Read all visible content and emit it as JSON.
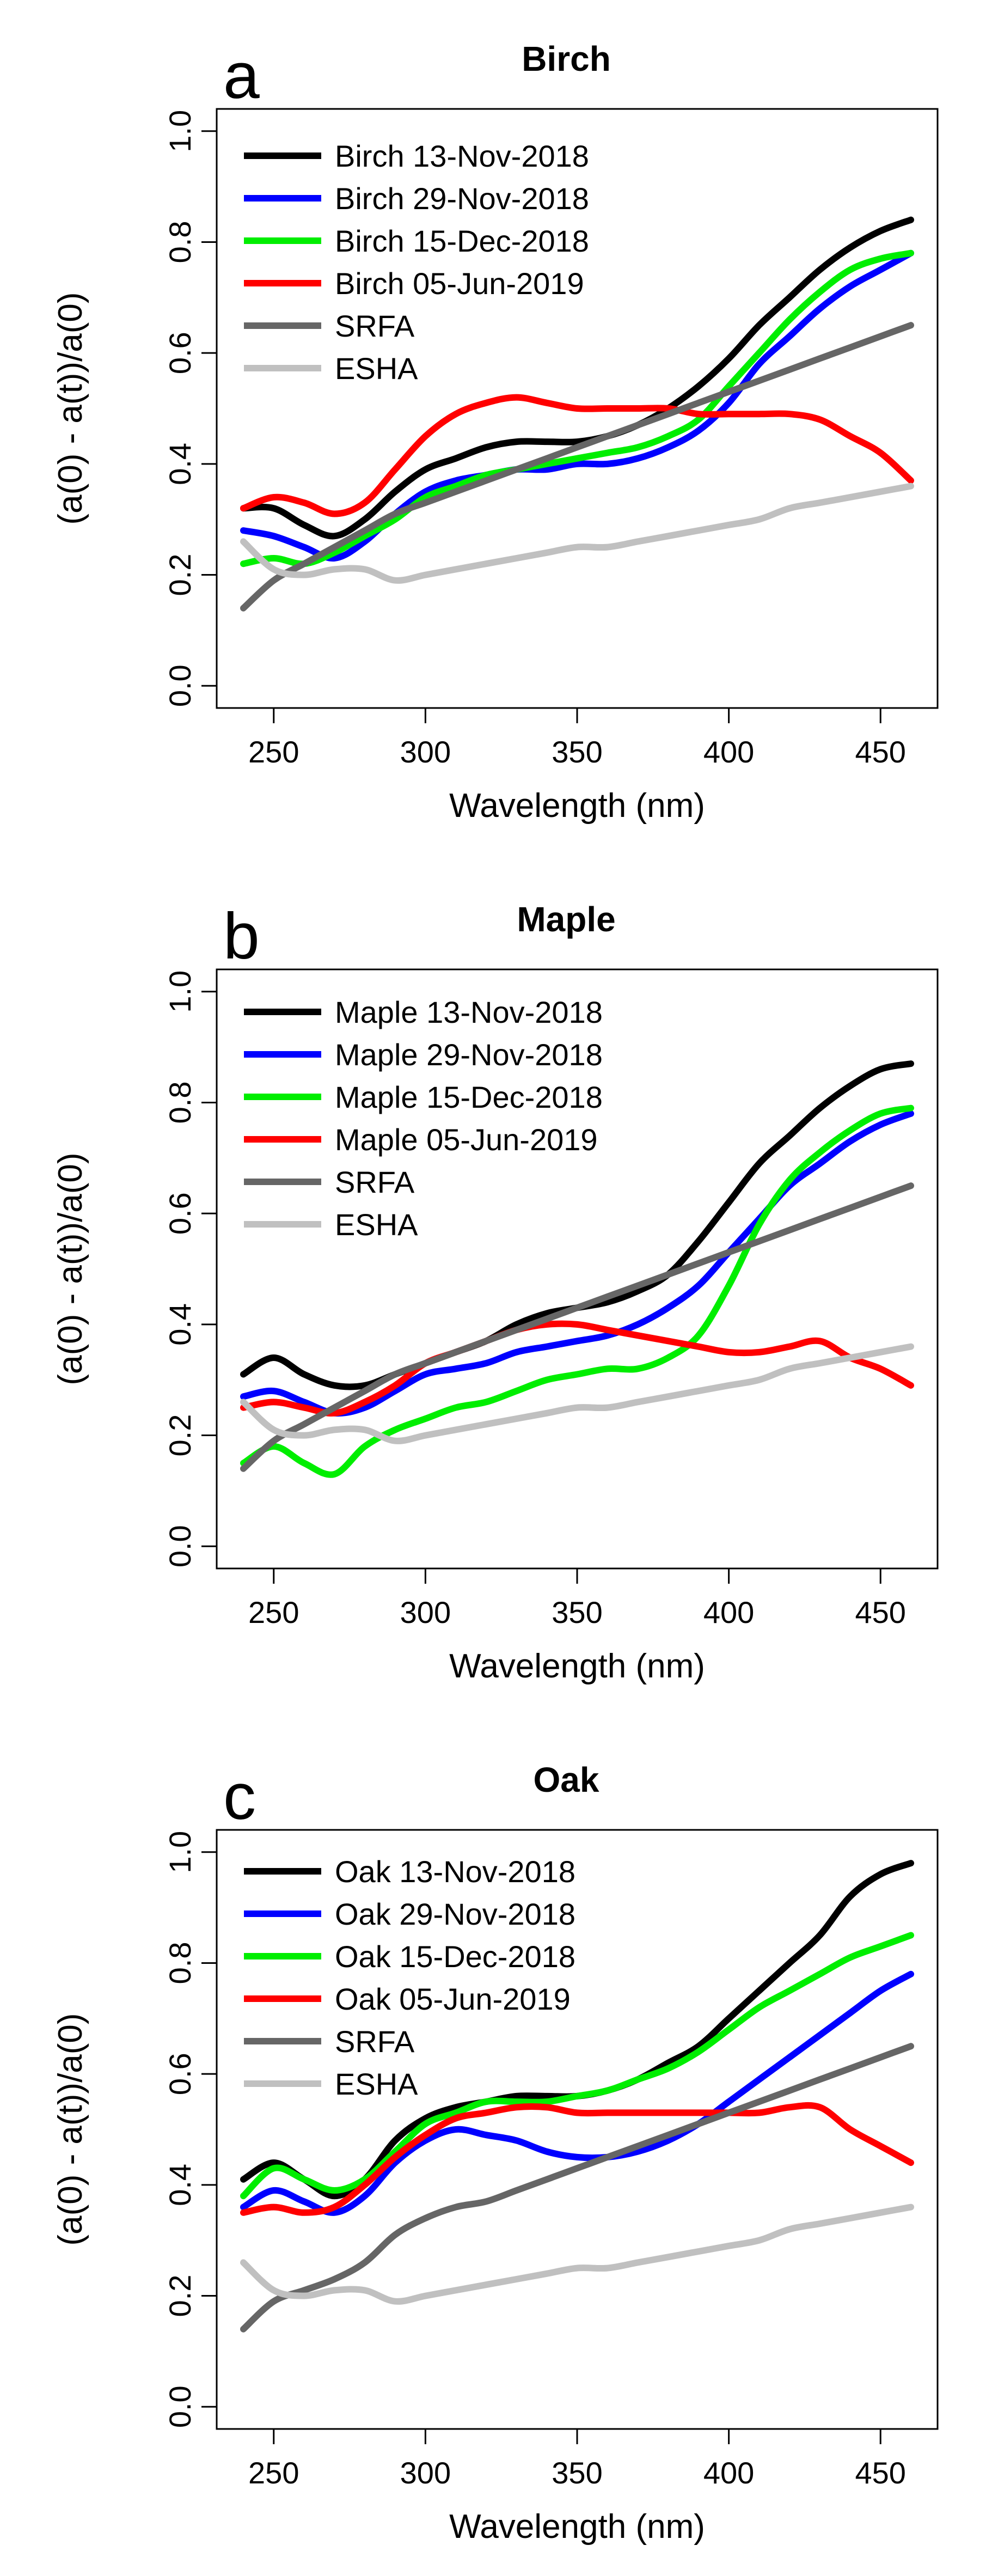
{
  "chart_data": [
    {
      "type": "line",
      "panel_letter": "a",
      "title": "Birch",
      "xlabel": "Wavelength (nm)",
      "ylabel": "(a(0) - a(t))/a(0)",
      "xlim": [
        240,
        460
      ],
      "ylim": [
        0.0,
        1.0
      ],
      "x_ticks": [
        "250",
        "300",
        "350",
        "400",
        "450"
      ],
      "y_ticks": [
        "0.0",
        "0.2",
        "0.4",
        "0.6",
        "0.8",
        "1.0"
      ],
      "grid": false,
      "legend_position": "top-left",
      "x": [
        240,
        250,
        260,
        270,
        280,
        290,
        300,
        310,
        320,
        330,
        340,
        350,
        360,
        370,
        380,
        390,
        400,
        410,
        420,
        430,
        440,
        450,
        460
      ],
      "series": [
        {
          "name": "Birch 13-Nov-2018",
          "color": "#000000",
          "values": [
            0.32,
            0.32,
            0.29,
            0.27,
            0.3,
            0.35,
            0.39,
            0.41,
            0.43,
            0.44,
            0.44,
            0.44,
            0.45,
            0.47,
            0.5,
            0.54,
            0.59,
            0.65,
            0.7,
            0.75,
            0.79,
            0.82,
            0.84
          ]
        },
        {
          "name": "Birch 29-Nov-2018",
          "color": "#0000ff",
          "values": [
            0.28,
            0.27,
            0.25,
            0.23,
            0.26,
            0.31,
            0.35,
            0.37,
            0.38,
            0.39,
            0.39,
            0.4,
            0.4,
            0.41,
            0.43,
            0.46,
            0.51,
            0.58,
            0.63,
            0.68,
            0.72,
            0.75,
            0.78
          ]
        },
        {
          "name": "Birch 15-Dec-2018",
          "color": "#00ee00",
          "values": [
            0.22,
            0.23,
            0.22,
            0.24,
            0.27,
            0.3,
            0.34,
            0.36,
            0.38,
            0.39,
            0.4,
            0.41,
            0.42,
            0.43,
            0.45,
            0.48,
            0.54,
            0.6,
            0.66,
            0.71,
            0.75,
            0.77,
            0.78
          ]
        },
        {
          "name": "Birch 05-Jun-2019",
          "color": "#ff0000",
          "values": [
            0.32,
            0.34,
            0.33,
            0.31,
            0.33,
            0.39,
            0.45,
            0.49,
            0.51,
            0.52,
            0.51,
            0.5,
            0.5,
            0.5,
            0.5,
            0.49,
            0.49,
            0.49,
            0.49,
            0.48,
            0.45,
            0.42,
            0.37
          ]
        },
        {
          "name": "SRFA",
          "color": "#666666",
          "values": [
            0.14,
            0.19,
            0.22,
            0.25,
            0.28,
            0.31,
            0.33,
            0.35,
            0.37,
            0.39,
            0.41,
            0.43,
            0.45,
            0.47,
            0.49,
            0.51,
            0.53,
            0.55,
            0.57,
            0.59,
            0.61,
            0.63,
            0.65
          ]
        },
        {
          "name": "ESHA",
          "color": "#c0c0c0",
          "values": [
            0.26,
            0.21,
            0.2,
            0.21,
            0.21,
            0.19,
            0.2,
            0.21,
            0.22,
            0.23,
            0.24,
            0.25,
            0.25,
            0.26,
            0.27,
            0.28,
            0.29,
            0.3,
            0.32,
            0.33,
            0.34,
            0.35,
            0.36
          ]
        }
      ]
    },
    {
      "type": "line",
      "panel_letter": "b",
      "title": "Maple",
      "xlabel": "Wavelength (nm)",
      "ylabel": "(a(0) - a(t))/a(0)",
      "xlim": [
        240,
        460
      ],
      "ylim": [
        0.0,
        1.0
      ],
      "x_ticks": [
        "250",
        "300",
        "350",
        "400",
        "450"
      ],
      "y_ticks": [
        "0.0",
        "0.2",
        "0.4",
        "0.6",
        "0.8",
        "1.0"
      ],
      "grid": false,
      "legend_position": "top-left",
      "x": [
        240,
        250,
        260,
        270,
        280,
        290,
        300,
        310,
        320,
        330,
        340,
        350,
        360,
        370,
        380,
        390,
        400,
        410,
        420,
        430,
        440,
        450,
        460
      ],
      "series": [
        {
          "name": "Maple 13-Nov-2018",
          "color": "#000000",
          "values": [
            0.31,
            0.34,
            0.31,
            0.29,
            0.29,
            0.31,
            0.33,
            0.35,
            0.37,
            0.4,
            0.42,
            0.43,
            0.44,
            0.46,
            0.49,
            0.55,
            0.62,
            0.69,
            0.74,
            0.79,
            0.83,
            0.86,
            0.87
          ]
        },
        {
          "name": "Maple 29-Nov-2018",
          "color": "#0000ff",
          "values": [
            0.27,
            0.28,
            0.26,
            0.24,
            0.25,
            0.28,
            0.31,
            0.32,
            0.33,
            0.35,
            0.36,
            0.37,
            0.38,
            0.4,
            0.43,
            0.47,
            0.53,
            0.59,
            0.65,
            0.69,
            0.73,
            0.76,
            0.78
          ]
        },
        {
          "name": "Maple 15-Dec-2018",
          "color": "#00ee00",
          "values": [
            0.15,
            0.18,
            0.15,
            0.13,
            0.18,
            0.21,
            0.23,
            0.25,
            0.26,
            0.28,
            0.3,
            0.31,
            0.32,
            0.32,
            0.34,
            0.38,
            0.47,
            0.58,
            0.66,
            0.71,
            0.75,
            0.78,
            0.79
          ]
        },
        {
          "name": "Maple 05-Jun-2019",
          "color": "#ff0000",
          "values": [
            0.25,
            0.26,
            0.25,
            0.24,
            0.26,
            0.29,
            0.33,
            0.35,
            0.37,
            0.39,
            0.4,
            0.4,
            0.39,
            0.38,
            0.37,
            0.36,
            0.35,
            0.35,
            0.36,
            0.37,
            0.34,
            0.32,
            0.29
          ]
        },
        {
          "name": "SRFA",
          "color": "#666666",
          "values": [
            0.14,
            0.19,
            0.22,
            0.25,
            0.28,
            0.31,
            0.33,
            0.35,
            0.37,
            0.39,
            0.41,
            0.43,
            0.45,
            0.47,
            0.49,
            0.51,
            0.53,
            0.55,
            0.57,
            0.59,
            0.61,
            0.63,
            0.65
          ]
        },
        {
          "name": "ESHA",
          "color": "#c0c0c0",
          "values": [
            0.26,
            0.21,
            0.2,
            0.21,
            0.21,
            0.19,
            0.2,
            0.21,
            0.22,
            0.23,
            0.24,
            0.25,
            0.25,
            0.26,
            0.27,
            0.28,
            0.29,
            0.3,
            0.32,
            0.33,
            0.34,
            0.35,
            0.36
          ]
        }
      ]
    },
    {
      "type": "line",
      "panel_letter": "c",
      "title": "Oak",
      "xlabel": "Wavelength (nm)",
      "ylabel": "(a(0) - a(t))/a(0)",
      "xlim": [
        240,
        460
      ],
      "ylim": [
        0.0,
        1.0
      ],
      "x_ticks": [
        "250",
        "300",
        "350",
        "400",
        "450"
      ],
      "y_ticks": [
        "0.0",
        "0.2",
        "0.4",
        "0.6",
        "0.8",
        "1.0"
      ],
      "grid": false,
      "legend_position": "top-left",
      "x": [
        240,
        250,
        260,
        270,
        280,
        290,
        300,
        310,
        320,
        330,
        340,
        350,
        360,
        370,
        380,
        390,
        400,
        410,
        420,
        430,
        440,
        450,
        460
      ],
      "series": [
        {
          "name": "Oak 13-Nov-2018",
          "color": "#000000",
          "values": [
            0.41,
            0.44,
            0.41,
            0.38,
            0.41,
            0.48,
            0.52,
            0.54,
            0.55,
            0.56,
            0.56,
            0.56,
            0.57,
            0.59,
            0.62,
            0.65,
            0.7,
            0.75,
            0.8,
            0.85,
            0.92,
            0.96,
            0.98
          ]
        },
        {
          "name": "Oak 29-Nov-2018",
          "color": "#0000ff",
          "values": [
            0.36,
            0.39,
            0.37,
            0.35,
            0.38,
            0.44,
            0.48,
            0.5,
            0.49,
            0.48,
            0.46,
            0.45,
            0.45,
            0.46,
            0.48,
            0.51,
            0.55,
            0.59,
            0.63,
            0.67,
            0.71,
            0.75,
            0.78
          ]
        },
        {
          "name": "Oak 15-Dec-2018",
          "color": "#00ee00",
          "values": [
            0.38,
            0.43,
            0.41,
            0.39,
            0.41,
            0.46,
            0.51,
            0.53,
            0.55,
            0.55,
            0.55,
            0.56,
            0.57,
            0.59,
            0.61,
            0.64,
            0.68,
            0.72,
            0.75,
            0.78,
            0.81,
            0.83,
            0.85
          ]
        },
        {
          "name": "Oak 05-Jun-2019",
          "color": "#ff0000",
          "values": [
            0.35,
            0.36,
            0.35,
            0.36,
            0.4,
            0.45,
            0.49,
            0.52,
            0.53,
            0.54,
            0.54,
            0.53,
            0.53,
            0.53,
            0.53,
            0.53,
            0.53,
            0.53,
            0.54,
            0.54,
            0.5,
            0.47,
            0.44
          ]
        },
        {
          "name": "SRFA",
          "color": "#666666",
          "values": [
            0.14,
            0.19,
            0.21,
            0.23,
            0.26,
            0.31,
            0.34,
            0.36,
            0.37,
            0.39,
            0.41,
            0.43,
            0.45,
            0.47,
            0.49,
            0.51,
            0.53,
            0.55,
            0.57,
            0.59,
            0.61,
            0.63,
            0.65
          ]
        },
        {
          "name": "ESHA",
          "color": "#c0c0c0",
          "values": [
            0.26,
            0.21,
            0.2,
            0.21,
            0.21,
            0.19,
            0.2,
            0.21,
            0.22,
            0.23,
            0.24,
            0.25,
            0.25,
            0.26,
            0.27,
            0.28,
            0.29,
            0.3,
            0.32,
            0.33,
            0.34,
            0.35,
            0.36
          ]
        }
      ]
    }
  ]
}
